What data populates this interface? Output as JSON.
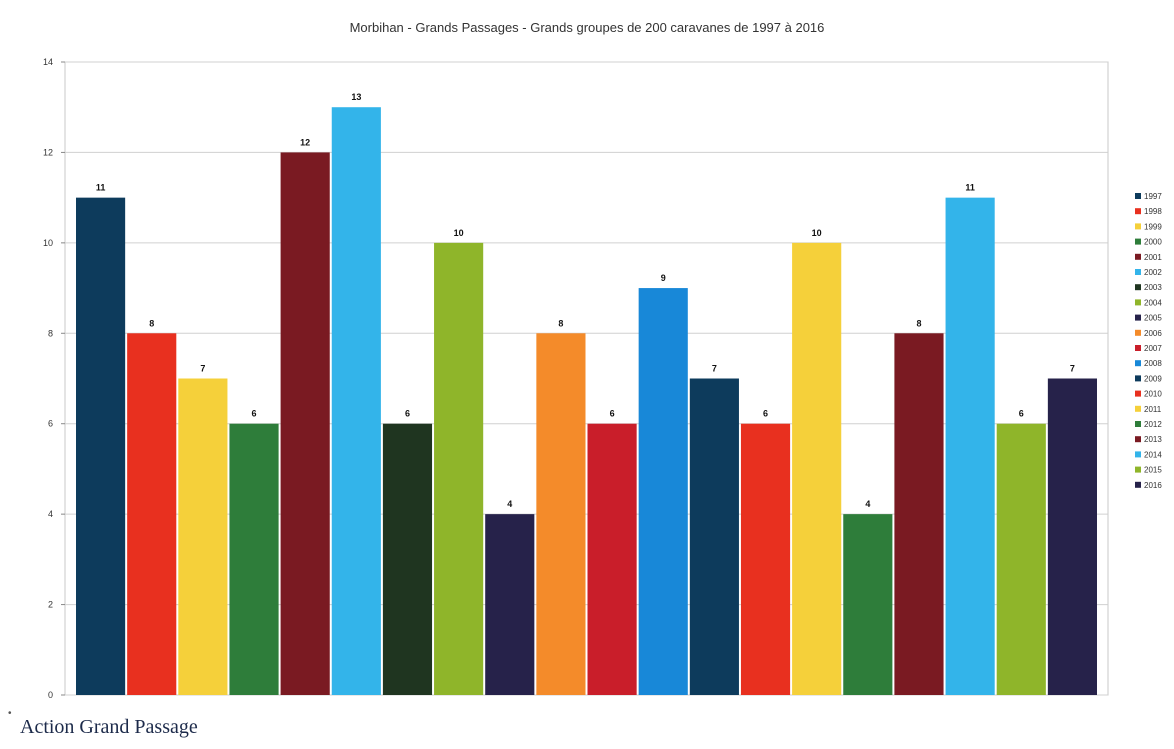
{
  "chart_data": {
    "type": "bar",
    "title": "Morbihan - Grands Passages - Grands groupes de 200 caravanes de 1997 à 2016",
    "xlabel": "",
    "ylabel": "",
    "ylim": [
      0,
      14
    ],
    "yticks": [
      "0",
      "2",
      "4",
      "6",
      "8",
      "10",
      "12",
      "14"
    ],
    "grid": true,
    "legend_position": "right",
    "categories": [
      "1997",
      "1998",
      "1999",
      "2000",
      "2001",
      "2002",
      "2003",
      "2004",
      "2005",
      "2006",
      "2007",
      "2008",
      "2009",
      "2010",
      "2011",
      "2012",
      "2013",
      "2014",
      "2015",
      "2016"
    ],
    "values": [
      11,
      8,
      7,
      6,
      12,
      13,
      6,
      10,
      4,
      8,
      6,
      9,
      7,
      6,
      10,
      4,
      8,
      11,
      6,
      7
    ],
    "colors": [
      "#0d3b5c",
      "#e8301f",
      "#f5d03a",
      "#2e7d3a",
      "#7a1a22",
      "#33b4ea",
      "#1f3520",
      "#8fb52a",
      "#26224a",
      "#f48b2a",
      "#c91e2a",
      "#1888d8",
      "#0d3b5c",
      "#e8301f",
      "#f5d03a",
      "#2e7d3a",
      "#7a1a22",
      "#33b4ea",
      "#8fb52a",
      "#26224a"
    ]
  },
  "footer": {
    "marker": "•",
    "text": "Action Grand Passage"
  }
}
